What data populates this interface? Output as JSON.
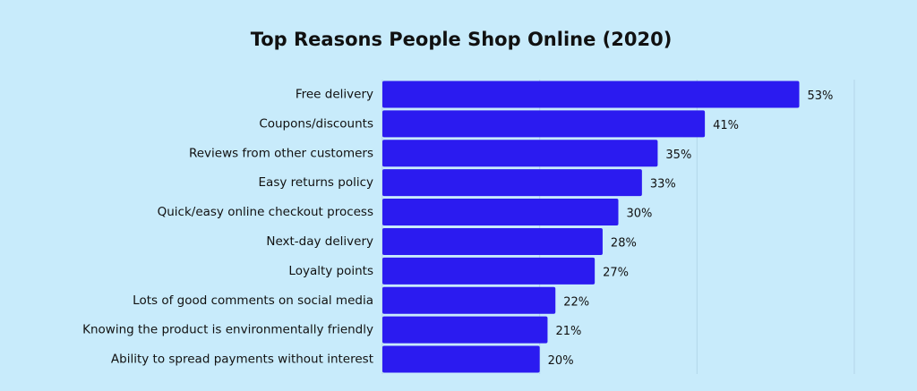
{
  "chart_data": {
    "type": "hbar",
    "title": "Top Reasons People Shop Online (2020)",
    "categories": [
      "Free delivery",
      "Coupons/discounts",
      "Reviews from other customers",
      "Easy returns policy",
      "Quick/easy online checkout process",
      "Next-day delivery",
      "Loyalty points",
      "Lots of good comments on social media",
      "Knowing the product is environmentally friendly",
      "Ability to spread payments without interest"
    ],
    "values": [
      53,
      41,
      35,
      33,
      30,
      28,
      27,
      22,
      21,
      20
    ],
    "value_labels": [
      "53%",
      "41%",
      "35%",
      "33%",
      "30%",
      "28%",
      "27%",
      "22%",
      "21%",
      "20%"
    ],
    "color": "#2b1bf0",
    "xlim": [
      0,
      60
    ],
    "xticks": [
      0,
      20,
      40,
      60
    ],
    "grid": true
  }
}
